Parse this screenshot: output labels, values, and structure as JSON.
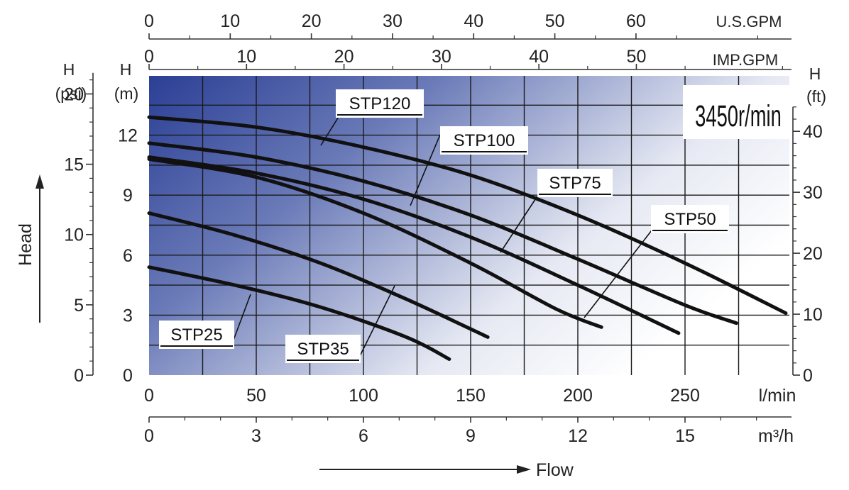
{
  "chart_data": {
    "type": "line",
    "speed_label": "3450r/min",
    "x_axis_label": "Flow",
    "y_axis_label": "Head",
    "x_unit": "l/min",
    "y_unit": "m",
    "xlim": [
      0,
      300
    ],
    "ylim": [
      0,
      15
    ],
    "x_ticks": [
      0,
      50,
      100,
      150,
      200,
      250
    ],
    "y_ticks": [
      0,
      3,
      6,
      9,
      12
    ],
    "y_unit_heading": "H",
    "y_unit_sub": "(m)",
    "top_axes": [
      {
        "unit": "U.S.GPM",
        "ticks": [
          0,
          10,
          20,
          30,
          40,
          50,
          60
        ]
      },
      {
        "unit": "IMP.GPM",
        "ticks": [
          0,
          10,
          20,
          30,
          40,
          50
        ]
      }
    ],
    "bottom_axis_m3h": {
      "unit": "m³/h",
      "ticks": [
        0,
        3,
        6,
        9,
        12,
        15
      ]
    },
    "psi_axis": {
      "heading": "H",
      "unit": "(psi)",
      "ticks": [
        0,
        5,
        10,
        15,
        20
      ]
    },
    "ft_axis": {
      "heading": "H",
      "unit": "(ft)",
      "ticks": [
        0,
        10,
        20,
        30,
        40
      ]
    },
    "grid": true,
    "series": [
      {
        "name": "STP25",
        "points": [
          [
            0,
            5.4
          ],
          [
            40,
            4.5
          ],
          [
            80,
            3.4
          ],
          [
            120,
            1.9
          ],
          [
            140,
            0.8
          ]
        ]
      },
      {
        "name": "STP35",
        "points": [
          [
            0,
            8.1
          ],
          [
            40,
            7.0
          ],
          [
            80,
            5.6
          ],
          [
            120,
            3.8
          ],
          [
            158,
            1.9
          ]
        ]
      },
      {
        "name": "STP50",
        "points": [
          [
            0,
            10.8
          ],
          [
            50,
            9.9
          ],
          [
            100,
            8.1
          ],
          [
            150,
            5.6
          ],
          [
            190,
            3.3
          ],
          [
            211,
            2.4
          ]
        ]
      },
      {
        "name": "STP75",
        "points": [
          [
            0,
            10.9
          ],
          [
            50,
            10.1
          ],
          [
            100,
            8.8
          ],
          [
            150,
            6.9
          ],
          [
            200,
            4.5
          ],
          [
            247,
            2.1
          ]
        ]
      },
      {
        "name": "STP100",
        "points": [
          [
            0,
            11.6
          ],
          [
            50,
            10.9
          ],
          [
            100,
            9.7
          ],
          [
            150,
            8.0
          ],
          [
            200,
            5.8
          ],
          [
            250,
            3.5
          ],
          [
            274,
            2.6
          ]
        ]
      },
      {
        "name": "STP120",
        "points": [
          [
            0,
            12.9
          ],
          [
            50,
            12.4
          ],
          [
            100,
            11.4
          ],
          [
            150,
            10.0
          ],
          [
            200,
            8.0
          ],
          [
            250,
            5.6
          ],
          [
            297,
            3.1
          ]
        ]
      }
    ]
  }
}
